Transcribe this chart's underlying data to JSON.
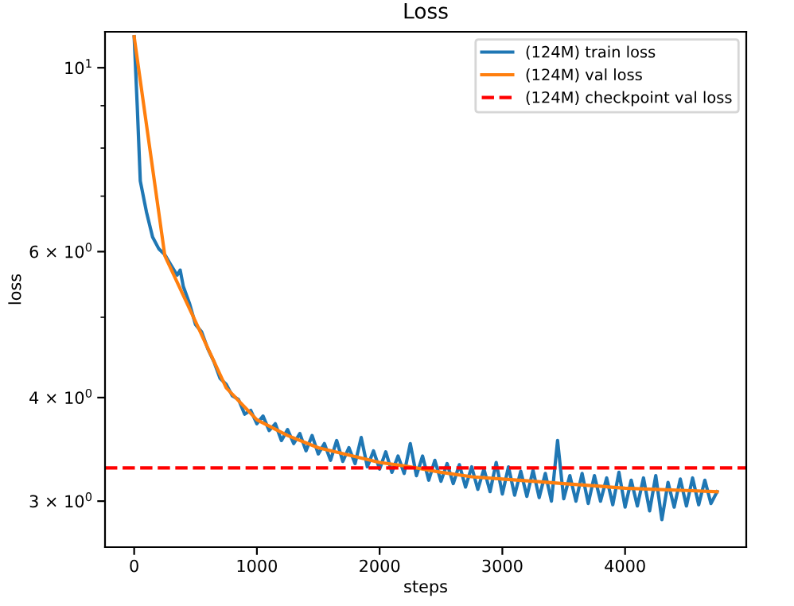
{
  "chart_data": {
    "type": "line",
    "title": "Loss",
    "xlabel": "steps",
    "ylabel": "loss",
    "log": "y",
    "xlim": [
      -237.5,
      4987.5
    ],
    "ylim": [
      2.64,
      11.05
    ],
    "xticks": [
      0,
      1000,
      2000,
      3000,
      4000
    ],
    "yticks": [
      {
        "value": 3,
        "label": "3 × 10$^{0}$"
      },
      {
        "value": 4,
        "label": "4 × 10$^{0}$"
      },
      {
        "value": 5,
        "label": null
      },
      {
        "value": 6,
        "label": "6 × 10$^{0}$"
      },
      {
        "value": 7,
        "label": null
      },
      {
        "value": 8,
        "label": null
      },
      {
        "value": 9,
        "label": null
      },
      {
        "value": 10,
        "label": "10$^{1}$"
      }
    ],
    "legend": "top right",
    "grid": false,
    "series": [
      {
        "name": "(124M) train loss",
        "color": "#1f77b4",
        "x": [
          0,
          25,
          50,
          100,
          150,
          200,
          250,
          300,
          350,
          375,
          400,
          450,
          500,
          550,
          600,
          650,
          700,
          750,
          800,
          850,
          900,
          950,
          1000,
          1050,
          1100,
          1150,
          1200,
          1250,
          1300,
          1350,
          1400,
          1450,
          1500,
          1550,
          1600,
          1650,
          1700,
          1750,
          1800,
          1850,
          1900,
          1950,
          2000,
          2050,
          2100,
          2150,
          2200,
          2250,
          2300,
          2350,
          2400,
          2450,
          2500,
          2550,
          2600,
          2650,
          2700,
          2750,
          2800,
          2850,
          2900,
          2950,
          3000,
          3050,
          3100,
          3150,
          3200,
          3250,
          3300,
          3350,
          3400,
          3450,
          3500,
          3550,
          3600,
          3650,
          3700,
          3750,
          3800,
          3850,
          3900,
          3950,
          4000,
          4050,
          4100,
          4150,
          4200,
          4250,
          4300,
          4350,
          4400,
          4450,
          4500,
          4550,
          4600,
          4650,
          4700,
          4750
        ],
        "values": [
          10.9,
          9.0,
          7.3,
          6.7,
          6.25,
          6.05,
          5.95,
          5.78,
          5.62,
          5.7,
          5.45,
          5.2,
          4.9,
          4.8,
          4.58,
          4.42,
          4.22,
          4.15,
          4.02,
          3.98,
          3.82,
          3.86,
          3.72,
          3.8,
          3.65,
          3.72,
          3.55,
          3.66,
          3.52,
          3.62,
          3.45,
          3.6,
          3.42,
          3.52,
          3.36,
          3.55,
          3.35,
          3.48,
          3.33,
          3.58,
          3.3,
          3.45,
          3.28,
          3.44,
          3.25,
          3.4,
          3.24,
          3.52,
          3.22,
          3.4,
          3.18,
          3.36,
          3.17,
          3.33,
          3.15,
          3.32,
          3.12,
          3.3,
          3.1,
          3.28,
          3.08,
          3.34,
          3.06,
          3.3,
          3.05,
          3.26,
          3.04,
          3.27,
          3.03,
          3.24,
          3.0,
          3.55,
          3.02,
          3.22,
          3.0,
          3.24,
          2.98,
          3.22,
          3.0,
          3.2,
          2.97,
          3.25,
          2.95,
          3.18,
          2.96,
          3.2,
          2.92,
          3.22,
          2.85,
          3.16,
          2.95,
          3.19,
          2.96,
          3.2,
          2.97,
          3.18,
          2.98,
          3.08
        ]
      },
      {
        "name": "(124M) val loss",
        "color": "#ff7f0e",
        "x": [
          0,
          250,
          500,
          750,
          1000,
          1250,
          1500,
          1750,
          2000,
          2250,
          2500,
          2750,
          3000,
          3250,
          3500,
          3750,
          4000,
          4250,
          4500,
          4750
        ],
        "values": [
          10.9,
          5.93,
          4.94,
          4.11,
          3.76,
          3.6,
          3.48,
          3.41,
          3.34,
          3.3,
          3.25,
          3.21,
          3.19,
          3.17,
          3.15,
          3.13,
          3.11,
          3.1,
          3.09,
          3.08
        ]
      }
    ],
    "ref_lines": [
      {
        "axis": "y",
        "value": 3.29,
        "label": "(124M) checkpoint val loss",
        "color": "#ff0000",
        "line_style": "dashed"
      }
    ]
  }
}
